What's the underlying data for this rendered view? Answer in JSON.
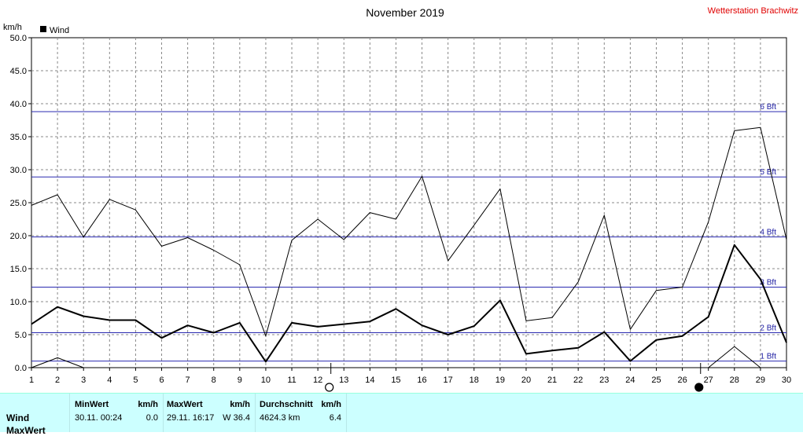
{
  "header": {
    "title": "November 2019",
    "station": "Wetterstation Brachwitz",
    "unit": "km/h",
    "legend": "Wind"
  },
  "chart_data": {
    "type": "line",
    "x": [
      1,
      2,
      3,
      4,
      5,
      6,
      7,
      8,
      9,
      10,
      11,
      12,
      13,
      14,
      15,
      16,
      17,
      18,
      19,
      20,
      21,
      22,
      23,
      24,
      25,
      26,
      27,
      28,
      29,
      30
    ],
    "ylim": [
      0,
      50
    ],
    "yticks": [
      "0.0",
      "5.0",
      "10.0",
      "15.0",
      "20.0",
      "25.0",
      "30.0",
      "35.0",
      "40.0",
      "45.0",
      "50.0"
    ],
    "series": [
      {
        "name": "Wind",
        "values": [
          6.6,
          9.2,
          7.8,
          7.2,
          7.2,
          4.5,
          6.4,
          5.3,
          6.8,
          0.9,
          6.8,
          6.2,
          6.6,
          7.0,
          8.9,
          6.4,
          5.0,
          6.3,
          10.2,
          2.1,
          2.6,
          3.0,
          5.4,
          1.0,
          4.2,
          4.8,
          7.7,
          18.6,
          13.4,
          3.8
        ]
      },
      {
        "name": "MaxWert",
        "values": [
          24.6,
          26.2,
          19.8,
          25.5,
          23.9,
          18.4,
          19.7,
          17.8,
          15.6,
          4.8,
          19.3,
          22.5,
          19.4,
          23.5,
          22.5,
          29.0,
          16.2,
          21.6,
          27.1,
          7.1,
          7.6,
          13.0,
          23.1,
          5.8,
          11.7,
          12.2,
          22.1,
          35.9,
          36.4,
          19.4
        ]
      },
      {
        "name": "MinWert",
        "values": [
          0.0,
          1.5,
          0.0,
          null,
          null,
          null,
          null,
          null,
          null,
          null,
          null,
          null,
          null,
          null,
          null,
          null,
          null,
          null,
          null,
          null,
          null,
          null,
          null,
          null,
          null,
          null,
          0.0,
          3.2,
          0.0,
          null
        ]
      }
    ],
    "beaufort": [
      {
        "label": "1 Bft",
        "value": 1.0
      },
      {
        "label": "2 Bft",
        "value": 5.3
      },
      {
        "label": "3 Bft",
        "value": 12.2
      },
      {
        "label": "4 Bft",
        "value": 19.8
      },
      {
        "label": "5 Bft",
        "value": 28.9
      },
      {
        "label": "6 Bft",
        "value": 38.8
      }
    ],
    "moon_phases": [
      {
        "day": 12.5,
        "phase": "full"
      },
      {
        "day": 26.7,
        "phase": "new"
      }
    ],
    "grid": true
  },
  "stats": {
    "headers": {
      "min": "MinWert",
      "min_unit": "km/h",
      "max": "MaxWert",
      "max_unit": "km/h",
      "avg": "Durchschnitt",
      "avg_unit": "km/h"
    },
    "rows": [
      {
        "label": "Wind",
        "min_time": "30.11.  00:24",
        "min_val": "0.0",
        "max_time": "29.11.  16:17",
        "max_val": "W 36.4",
        "distance": "4624.3 km",
        "avg_val": "6.4"
      }
    ],
    "row2_label": "MaxWert"
  }
}
